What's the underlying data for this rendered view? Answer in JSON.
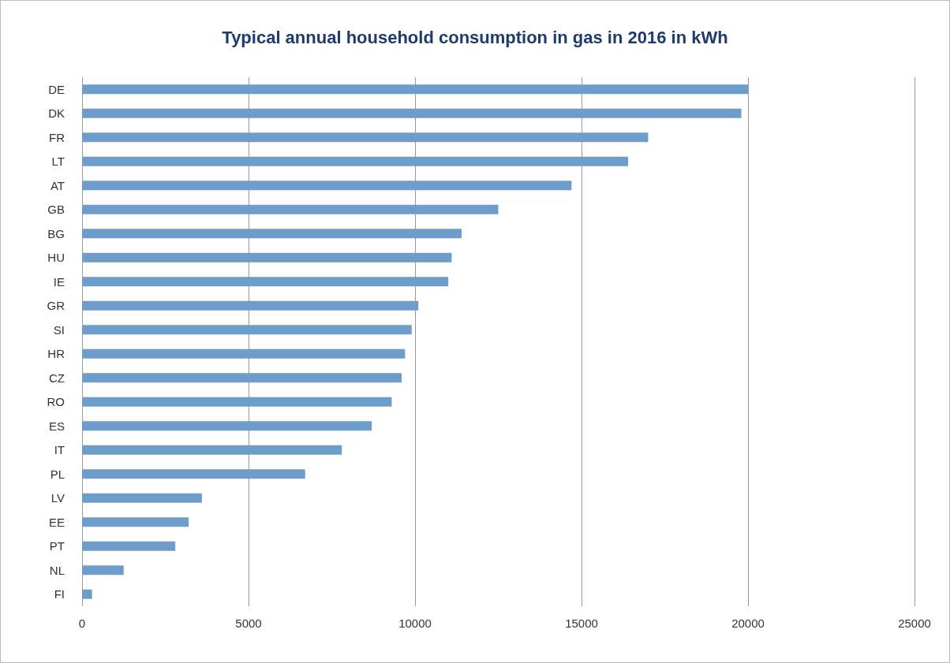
{
  "chart_data": {
    "type": "bar",
    "title": "Typical annual household consumption in gas in 2016 in kWh",
    "orientation": "horizontal",
    "categories": [
      "DE",
      "DK",
      "FR",
      "LT",
      "AT",
      "GB",
      "BG",
      "HU",
      "IE",
      "GR",
      "SI",
      "HR",
      "CZ",
      "RO",
      "ES",
      "IT",
      "PL",
      "LV",
      "EE",
      "PT",
      "NL",
      "FI"
    ],
    "values": [
      20000,
      19800,
      17000,
      16400,
      14700,
      12500,
      11400,
      11100,
      11000,
      10100,
      9900,
      9700,
      9600,
      9300,
      8700,
      7800,
      6700,
      3600,
      3200,
      2800,
      1250,
      300
    ],
    "color": "#6f9dcb",
    "xlim": [
      0,
      25000
    ],
    "xticks": [
      0,
      5000,
      10000,
      15000,
      20000,
      25000
    ],
    "grid": "x"
  }
}
